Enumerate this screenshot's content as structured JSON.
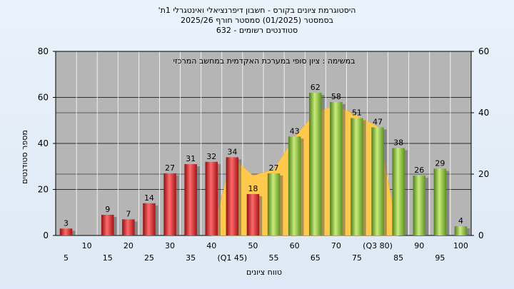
{
  "titles": {
    "line1": "היסטוגרמת ציונים בקורס - חשבון דיפרנציאלי ואינטגרלי 1ת'",
    "line2": "בסמסטר  (01/2025)  סמסטר חורף  2025/26",
    "line3": "סטודנטים רשומים - 632"
  },
  "chart_data": {
    "type": "bar",
    "annotation": "במשימה : ציון סופי במערכת האקדמית במחשב המרכזי",
    "xlabel": "טווח ציונים",
    "ylabel": "מספר סטודנטים",
    "ylim": [
      0,
      80
    ],
    "y2lim": [
      0,
      60
    ],
    "yticks": [
      0,
      20,
      40,
      60,
      80
    ],
    "y2ticks": [
      0,
      20,
      40,
      60
    ],
    "categories": [
      "5",
      "10",
      "15",
      "20",
      "25",
      "30",
      "35",
      "40",
      "(Q1 45)",
      "50",
      "55",
      "60",
      "65",
      "70",
      "75",
      "(Q3 80)",
      "85",
      "90",
      "95",
      "100"
    ],
    "values": [
      3,
      0,
      9,
      7,
      14,
      27,
      31,
      32,
      34,
      18,
      27,
      43,
      62,
      58,
      51,
      47,
      38,
      26,
      29,
      4
    ],
    "bar_colors": {
      "below": "#e0262b",
      "above": "#8dc63f"
    },
    "threshold_category": "55",
    "area_series": {
      "name": "",
      "color": "#ffc94d",
      "x": [
        "40",
        "(Q1 45)",
        "50",
        "55",
        "60",
        "65",
        "70",
        "75",
        "(Q3 80)",
        "85"
      ],
      "values": [
        0,
        25.5,
        19.5,
        21.5,
        32,
        40,
        42.5,
        39,
        35.5,
        0
      ]
    },
    "grid": true
  }
}
